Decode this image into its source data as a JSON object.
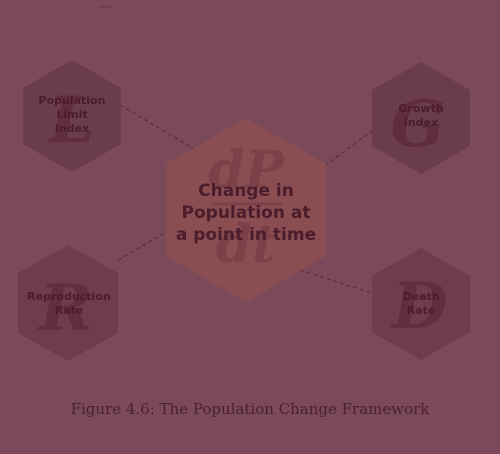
{
  "header_note": "Draft file",
  "nodes": {
    "limit": {
      "label": "Population\nLimit\nIndex",
      "glyph": "L"
    },
    "growth": {
      "label": "Growth\nIndex",
      "glyph": "G"
    },
    "center": {
      "label": "Change in\nPopulation at\na point in time",
      "glyph_top": "dP",
      "glyph_bottom": "dt"
    },
    "reproduction": {
      "label": "Reproduction\nRate",
      "glyph": "R"
    },
    "death": {
      "label": "Death\nRate",
      "glyph": "D"
    }
  },
  "caption": "Figure 4.6:  The Population Change Framework",
  "colors": {
    "background": "#7a4a5a",
    "small_hex": "#6a3c4c",
    "center_hex": "#8a4e52",
    "connector": "#5e2c3c",
    "text": "#4a1c2c"
  }
}
